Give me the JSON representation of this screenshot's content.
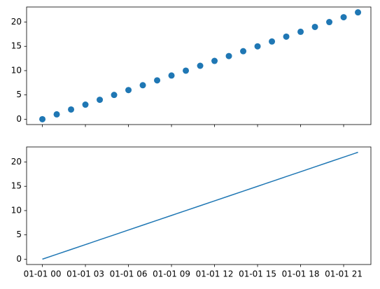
{
  "chart_data": [
    {
      "type": "scatter",
      "x": [
        0,
        1,
        2,
        3,
        4,
        5,
        6,
        7,
        8,
        9,
        10,
        11,
        12,
        13,
        14,
        15,
        16,
        17,
        18,
        19,
        20,
        21,
        22
      ],
      "series": [
        {
          "color": "#1f77b4",
          "values": [
            0,
            1,
            2,
            3,
            4,
            5,
            6,
            7,
            8,
            9,
            10,
            11,
            12,
            13,
            14,
            15,
            16,
            17,
            18,
            19,
            20,
            21,
            22
          ]
        }
      ],
      "xlim": [
        -1.1,
        22.9
      ],
      "ylim": [
        -1.1,
        23.1
      ],
      "xticks": [
        0,
        3,
        6,
        9,
        12,
        15,
        18,
        21
      ],
      "yticks": [
        0,
        5,
        10,
        15,
        20
      ]
    },
    {
      "type": "line",
      "x": [
        0,
        1,
        2,
        3,
        4,
        5,
        6,
        7,
        8,
        9,
        10,
        11,
        12,
        13,
        14,
        15,
        16,
        17,
        18,
        19,
        20,
        21,
        22
      ],
      "series": [
        {
          "color": "#1f77b4",
          "values": [
            0,
            1,
            2,
            3,
            4,
            5,
            6,
            7,
            8,
            9,
            10,
            11,
            12,
            13,
            14,
            15,
            16,
            17,
            18,
            19,
            20,
            21,
            22
          ]
        }
      ],
      "xlim": [
        -1.1,
        22.9
      ],
      "ylim": [
        -1.1,
        23.1
      ],
      "xticks": [
        {
          "value": 0,
          "label": "01-01 00"
        },
        {
          "value": 3,
          "label": "01-01 03"
        },
        {
          "value": 6,
          "label": "01-01 06"
        },
        {
          "value": 9,
          "label": "01-01 09"
        },
        {
          "value": 12,
          "label": "01-01 12"
        },
        {
          "value": 15,
          "label": "01-01 15"
        },
        {
          "value": 18,
          "label": "01-01 18"
        },
        {
          "value": 21,
          "label": "01-01 21"
        }
      ],
      "yticks": [
        0,
        5,
        10,
        15,
        20
      ]
    }
  ]
}
